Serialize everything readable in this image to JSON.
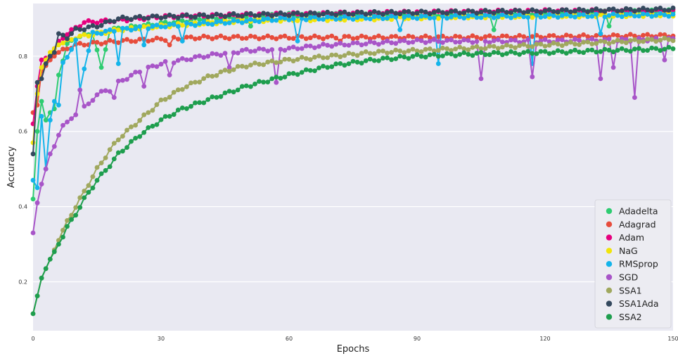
{
  "chart_data": {
    "type": "line",
    "xlabel": "Epochs",
    "ylabel": "Accuracy",
    "xlim": [
      0,
      150
    ],
    "ylim": [
      0.07,
      0.94
    ],
    "xticks": [
      0,
      30,
      60,
      90,
      120,
      150
    ],
    "xtick_labels": [
      "0",
      "30",
      "60",
      "90",
      "120",
      "150"
    ],
    "yticks": [
      0.2,
      0.4,
      0.6,
      0.8
    ],
    "ytick_labels": [
      "0.2",
      "0.4",
      "0.6",
      "0.8"
    ],
    "grid": true,
    "background": "#e9e9f2",
    "legend_position": "bottom-right",
    "markers": "circle",
    "epochs": 151,
    "series": [
      {
        "name": "Adadelta",
        "color": "#2ecc71",
        "anchors": [
          [
            0,
            0.42
          ],
          [
            1,
            0.6
          ],
          [
            2,
            0.68
          ],
          [
            3,
            0.63
          ],
          [
            4,
            0.65
          ],
          [
            5,
            0.66
          ],
          [
            6,
            0.75
          ],
          [
            8,
            0.83
          ],
          [
            10,
            0.85
          ],
          [
            14,
            0.86
          ],
          [
            16,
            0.77
          ],
          [
            18,
            0.87
          ],
          [
            25,
            0.88
          ],
          [
            40,
            0.9
          ],
          [
            60,
            0.91
          ],
          [
            100,
            0.91
          ],
          [
            150,
            0.92
          ]
        ],
        "dips": [
          [
            16,
            0.77
          ],
          [
            51,
            0.88
          ],
          [
            108,
            0.87
          ],
          [
            135,
            0.88
          ]
        ]
      },
      {
        "name": "Adagrad",
        "color": "#e74c3c",
        "anchors": [
          [
            0,
            0.65
          ],
          [
            1,
            0.67
          ],
          [
            2,
            0.76
          ],
          [
            4,
            0.79
          ],
          [
            6,
            0.81
          ],
          [
            10,
            0.83
          ],
          [
            20,
            0.84
          ],
          [
            30,
            0.845
          ],
          [
            40,
            0.85
          ],
          [
            60,
            0.85
          ],
          [
            80,
            0.85
          ],
          [
            100,
            0.85
          ],
          [
            150,
            0.855
          ]
        ],
        "dips": [
          [
            32,
            0.83
          ],
          [
            72,
            0.84
          ]
        ]
      },
      {
        "name": "Adam",
        "color": "#e6007e",
        "anchors": [
          [
            0,
            0.62
          ],
          [
            1,
            0.72
          ],
          [
            2,
            0.79
          ],
          [
            4,
            0.8
          ],
          [
            6,
            0.84
          ],
          [
            8,
            0.86
          ],
          [
            12,
            0.89
          ],
          [
            20,
            0.895
          ],
          [
            30,
            0.905
          ],
          [
            50,
            0.91
          ],
          [
            80,
            0.915
          ],
          [
            120,
            0.92
          ],
          [
            150,
            0.92
          ]
        ],
        "dips": []
      },
      {
        "name": "NaG",
        "color": "#f1e40a",
        "anchors": [
          [
            0,
            0.57
          ],
          [
            1,
            0.7
          ],
          [
            2,
            0.77
          ],
          [
            4,
            0.81
          ],
          [
            6,
            0.83
          ],
          [
            10,
            0.85
          ],
          [
            15,
            0.86
          ],
          [
            20,
            0.87
          ],
          [
            30,
            0.88
          ],
          [
            50,
            0.895
          ],
          [
            80,
            0.9
          ],
          [
            100,
            0.905
          ],
          [
            150,
            0.91
          ]
        ],
        "dips": []
      },
      {
        "name": "RMSprop",
        "color": "#14b4ea",
        "anchors": [
          [
            0,
            0.47
          ],
          [
            1,
            0.45
          ],
          [
            2,
            0.64
          ],
          [
            3,
            0.5
          ],
          [
            4,
            0.63
          ],
          [
            5,
            0.68
          ],
          [
            6,
            0.67
          ],
          [
            7,
            0.78
          ],
          [
            8,
            0.8
          ],
          [
            9,
            0.82
          ],
          [
            10,
            0.84
          ],
          [
            11,
            0.71
          ],
          [
            12,
            0.77
          ],
          [
            14,
            0.86
          ],
          [
            20,
            0.87
          ],
          [
            30,
            0.88
          ],
          [
            60,
            0.9
          ],
          [
            100,
            0.905
          ],
          [
            150,
            0.91
          ]
        ],
        "dips": [
          [
            11,
            0.71
          ],
          [
            20,
            0.78
          ],
          [
            26,
            0.83
          ],
          [
            35,
            0.84
          ],
          [
            62,
            0.84
          ],
          [
            86,
            0.87
          ],
          [
            95,
            0.78
          ],
          [
            117,
            0.78
          ],
          [
            133,
            0.86
          ]
        ]
      },
      {
        "name": "SGD",
        "color": "#a855c8",
        "anchors": [
          [
            0,
            0.33
          ],
          [
            1,
            0.41
          ],
          [
            2,
            0.46
          ],
          [
            3,
            0.5
          ],
          [
            4,
            0.54
          ],
          [
            5,
            0.56
          ],
          [
            6,
            0.59
          ],
          [
            7,
            0.62
          ],
          [
            9,
            0.63
          ],
          [
            11,
            0.66
          ],
          [
            13,
            0.67
          ],
          [
            15,
            0.7
          ],
          [
            18,
            0.71
          ],
          [
            20,
            0.73
          ],
          [
            25,
            0.76
          ],
          [
            30,
            0.78
          ],
          [
            40,
            0.8
          ],
          [
            50,
            0.815
          ],
          [
            60,
            0.82
          ],
          [
            70,
            0.83
          ],
          [
            80,
            0.835
          ],
          [
            90,
            0.84
          ],
          [
            100,
            0.84
          ],
          [
            120,
            0.84
          ],
          [
            150,
            0.845
          ]
        ],
        "dips": [
          [
            11,
            0.71
          ],
          [
            19,
            0.69
          ],
          [
            26,
            0.72
          ],
          [
            32,
            0.75
          ],
          [
            46,
            0.77
          ],
          [
            57,
            0.73
          ],
          [
            105,
            0.74
          ],
          [
            117,
            0.745
          ],
          [
            133,
            0.74
          ],
          [
            136,
            0.77
          ],
          [
            141,
            0.69
          ],
          [
            148,
            0.79
          ]
        ]
      },
      {
        "name": "SSA1",
        "color": "#a0a85e",
        "anchors": [
          [
            0,
            0.115
          ],
          [
            2,
            0.21
          ],
          [
            4,
            0.26
          ],
          [
            6,
            0.31
          ],
          [
            8,
            0.36
          ],
          [
            10,
            0.4
          ],
          [
            12,
            0.44
          ],
          [
            15,
            0.5
          ],
          [
            18,
            0.55
          ],
          [
            20,
            0.58
          ],
          [
            25,
            0.63
          ],
          [
            30,
            0.68
          ],
          [
            35,
            0.715
          ],
          [
            40,
            0.74
          ],
          [
            45,
            0.76
          ],
          [
            50,
            0.775
          ],
          [
            60,
            0.79
          ],
          [
            70,
            0.8
          ],
          [
            80,
            0.81
          ],
          [
            90,
            0.815
          ],
          [
            100,
            0.82
          ],
          [
            120,
            0.83
          ],
          [
            150,
            0.845
          ]
        ],
        "dips": []
      },
      {
        "name": "SSA1Ada",
        "color": "#34495e",
        "anchors": [
          [
            0,
            0.54
          ],
          [
            1,
            0.73
          ],
          [
            2,
            0.74
          ],
          [
            3,
            0.78
          ],
          [
            4,
            0.8
          ],
          [
            5,
            0.81
          ],
          [
            6,
            0.86
          ],
          [
            8,
            0.85
          ],
          [
            10,
            0.87
          ],
          [
            15,
            0.88
          ],
          [
            20,
            0.9
          ],
          [
            30,
            0.905
          ],
          [
            50,
            0.91
          ],
          [
            80,
            0.915
          ],
          [
            120,
            0.92
          ],
          [
            150,
            0.925
          ]
        ],
        "dips": []
      },
      {
        "name": "SSA2",
        "color": "#1e9e4e",
        "anchors": [
          [
            0,
            0.115
          ],
          [
            2,
            0.21
          ],
          [
            4,
            0.26
          ],
          [
            6,
            0.3
          ],
          [
            8,
            0.345
          ],
          [
            10,
            0.38
          ],
          [
            12,
            0.42
          ],
          [
            15,
            0.47
          ],
          [
            18,
            0.51
          ],
          [
            20,
            0.54
          ],
          [
            25,
            0.59
          ],
          [
            30,
            0.63
          ],
          [
            35,
            0.66
          ],
          [
            40,
            0.68
          ],
          [
            45,
            0.7
          ],
          [
            50,
            0.72
          ],
          [
            60,
            0.75
          ],
          [
            70,
            0.775
          ],
          [
            80,
            0.79
          ],
          [
            90,
            0.8
          ],
          [
            100,
            0.805
          ],
          [
            120,
            0.81
          ],
          [
            150,
            0.82
          ]
        ],
        "dips": []
      }
    ]
  }
}
